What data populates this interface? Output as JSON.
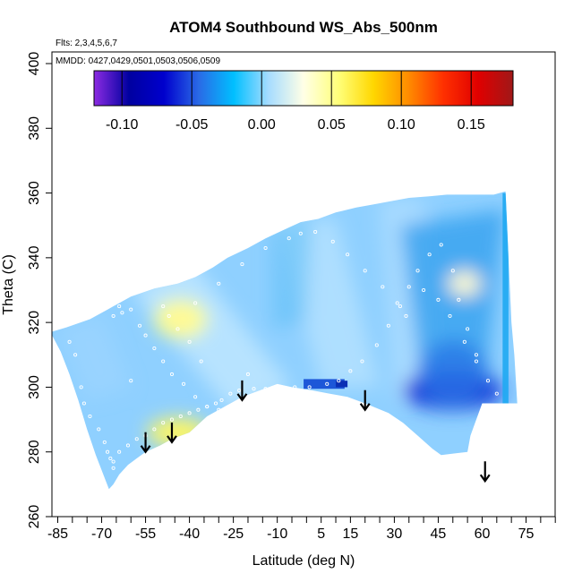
{
  "chart_data": {
    "type": "heatmap",
    "title": "ATOM4 Southbound WS_Abs_500nm",
    "subtitle_flights": "Flts: 2,3,4,5,6,7",
    "subtitle_dates": "MMDD: 0427,0429,0501,0503,0506,0509",
    "xlabel": "Latitude (deg N)",
    "ylabel": "Theta (C)",
    "xlim": [
      -87,
      88
    ],
    "ylim": [
      260,
      403
    ],
    "x_ticks_major": [
      -85,
      -70,
      -55,
      -40,
      -25,
      -10,
      5,
      15,
      30,
      45,
      60,
      75
    ],
    "x_tick_labels": [
      "-85",
      "-70",
      "-55",
      "-40",
      "-25",
      "-10",
      "5",
      "15",
      "30",
      "45",
      "60",
      "75"
    ],
    "y_ticks": [
      260,
      280,
      300,
      320,
      340,
      360,
      380,
      400
    ],
    "y_tick_labels": [
      "260",
      "280",
      "300",
      "320",
      "340",
      "360",
      "380",
      "400"
    ],
    "colorbar": {
      "min": -0.12,
      "max": 0.18,
      "ticks": [
        -0.1,
        -0.05,
        0.0,
        0.05,
        0.1,
        0.15
      ],
      "tick_labels": [
        "-0.10",
        "-0.05",
        "0.00",
        "0.05",
        "0.10",
        "0.15"
      ],
      "colors": [
        "#8c2be2",
        "#0000a0",
        "#0000cd",
        "#2a6ae6",
        "#00bfff",
        "#a6dcff",
        "#ffffe6",
        "#ffff7a",
        "#ffd700",
        "#ff8c00",
        "#ff3000",
        "#e00000",
        "#a01818"
      ]
    },
    "field": {
      "background": "#8fd0ff",
      "features": [
        {
          "name": "max-mid-south",
          "lat": -43,
          "theta": 321,
          "value": 0.05
        },
        {
          "name": "max-south-low",
          "lat": -44,
          "theta": 286,
          "value": 0.06
        },
        {
          "name": "max-north",
          "lat": 54,
          "theta": 332,
          "value": 0.045
        },
        {
          "name": "min-north",
          "lat": 50,
          "theta": 299,
          "value": -0.06
        },
        {
          "name": "min-equator",
          "lat": 10,
          "theta": 301,
          "value": -0.06
        },
        {
          "name": "dark-band-north",
          "lat": 64,
          "theta": 318,
          "value": 0.0
        }
      ]
    },
    "data_mask_polygon": [
      [
        -87.5,
        317
      ],
      [
        -82,
        318.5
      ],
      [
        -74,
        321
      ],
      [
        -68,
        324
      ],
      [
        -60,
        328
      ],
      [
        -52,
        330.5
      ],
      [
        -44,
        332
      ],
      [
        -38,
        334
      ],
      [
        -32,
        337
      ],
      [
        -27,
        340
      ],
      [
        -20,
        343
      ],
      [
        -14,
        346
      ],
      [
        -8,
        348.5
      ],
      [
        -2,
        351
      ],
      [
        4,
        352
      ],
      [
        10,
        354
      ],
      [
        17,
        355.5
      ],
      [
        23,
        356.5
      ],
      [
        29,
        357.5
      ],
      [
        35,
        358.5
      ],
      [
        42,
        359
      ],
      [
        48,
        359.5
      ],
      [
        55,
        359.5
      ],
      [
        60,
        359.5
      ],
      [
        64,
        359.5
      ],
      [
        68,
        360.5
      ],
      [
        68.5,
        350
      ],
      [
        69,
        340
      ],
      [
        70,
        320
      ],
      [
        71,
        310
      ],
      [
        72,
        295
      ],
      [
        60,
        295
      ],
      [
        58,
        290
      ],
      [
        56,
        285
      ],
      [
        55,
        280
      ],
      [
        46,
        279
      ],
      [
        43,
        281
      ],
      [
        38,
        285
      ],
      [
        33,
        289
      ],
      [
        28,
        292
      ],
      [
        20,
        295
      ],
      [
        14,
        297
      ],
      [
        8,
        298
      ],
      [
        2,
        299
      ],
      [
        -5,
        300
      ],
      [
        -10,
        301
      ],
      [
        -16,
        299
      ],
      [
        -22,
        297
      ],
      [
        -28,
        294
      ],
      [
        -34,
        291
      ],
      [
        -40,
        286
      ],
      [
        -46,
        284
      ],
      [
        -50,
        282
      ],
      [
        -55,
        280
      ],
      [
        -58,
        278
      ],
      [
        -61,
        276
      ],
      [
        -64,
        273
      ],
      [
        -66,
        270
      ],
      [
        -67.5,
        268.5
      ],
      [
        -69,
        272
      ],
      [
        -72,
        279
      ],
      [
        -75,
        287
      ],
      [
        -78,
        296
      ],
      [
        -81,
        304
      ],
      [
        -84,
        311
      ],
      [
        -87.5,
        317
      ]
    ],
    "flight_points": [
      [
        -81,
        314
      ],
      [
        -79,
        310
      ],
      [
        -77,
        300
      ],
      [
        -76,
        295
      ],
      [
        -74,
        291
      ],
      [
        -71,
        287
      ],
      [
        -69,
        283
      ],
      [
        -68,
        280
      ],
      [
        -67,
        278
      ],
      [
        -66,
        275
      ],
      [
        -66,
        277
      ],
      [
        -64,
        280
      ],
      [
        -61,
        282
      ],
      [
        -58,
        284
      ],
      [
        -55,
        285
      ],
      [
        -52,
        287
      ],
      [
        -49,
        289
      ],
      [
        -46,
        290
      ],
      [
        -43,
        291
      ],
      [
        -40,
        292
      ],
      [
        -37,
        293
      ],
      [
        -34,
        294
      ],
      [
        -31,
        295
      ],
      [
        -29,
        296
      ],
      [
        -26,
        298
      ],
      [
        -23,
        299
      ],
      [
        -18,
        299.5
      ],
      [
        -14,
        299.5
      ],
      [
        -9,
        300
      ],
      [
        -4,
        300
      ],
      [
        1,
        300
      ],
      [
        7,
        301
      ],
      [
        11,
        302
      ],
      [
        15,
        305
      ],
      [
        19,
        308
      ],
      [
        24,
        313
      ],
      [
        28,
        319
      ],
      [
        32,
        325
      ],
      [
        35,
        331
      ],
      [
        38,
        336
      ],
      [
        42,
        341
      ],
      [
        46,
        344
      ],
      [
        50,
        336
      ],
      [
        52,
        327
      ],
      [
        55,
        318
      ],
      [
        58,
        310
      ],
      [
        62,
        302
      ],
      [
        65,
        298
      ],
      [
        -66,
        322
      ],
      [
        -64,
        325
      ],
      [
        -62,
        328
      ],
      [
        -60,
        324
      ],
      [
        -57,
        319
      ],
      [
        -55,
        316
      ],
      [
        -52,
        312
      ],
      [
        -49,
        308
      ],
      [
        -46,
        304
      ],
      [
        -42,
        301
      ],
      [
        -38,
        297
      ],
      [
        -34,
        294
      ],
      [
        -30,
        293
      ],
      [
        -36,
        308
      ],
      [
        -40,
        314
      ],
      [
        -44,
        318
      ],
      [
        -47,
        322
      ],
      [
        -49,
        325
      ],
      [
        -38,
        326
      ],
      [
        -30,
        332
      ],
      [
        -22,
        338
      ],
      [
        -14,
        343
      ],
      [
        -6,
        346
      ],
      [
        -2,
        347.5
      ],
      [
        3,
        348
      ],
      [
        9,
        345
      ],
      [
        14,
        341
      ],
      [
        20,
        336
      ],
      [
        26,
        331
      ],
      [
        31,
        326
      ],
      [
        34,
        322
      ],
      [
        40,
        330
      ],
      [
        45,
        327
      ],
      [
        49,
        322
      ],
      [
        54,
        314
      ],
      [
        58,
        308
      ],
      [
        -63,
        323
      ],
      [
        -20,
        304
      ],
      [
        -60,
        302
      ]
    ],
    "arrows": [
      {
        "lat": -55,
        "theta": 280
      },
      {
        "lat": -46,
        "theta": 283
      },
      {
        "lat": -22,
        "theta": 296
      },
      {
        "lat": 20,
        "theta": 293
      },
      {
        "lat": 61,
        "theta": 271
      }
    ]
  }
}
